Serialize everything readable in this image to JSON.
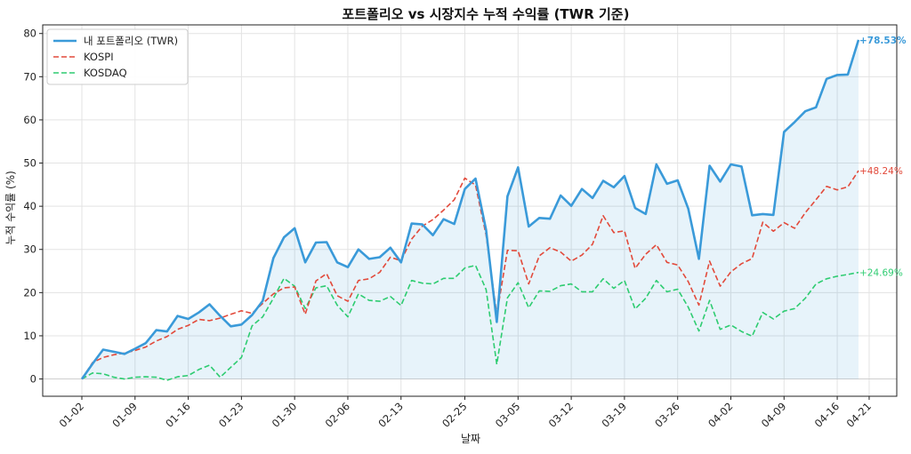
{
  "chart_data": {
    "type": "line",
    "title": "포트폴리오 vs 시장지수 누적 수익률 (TWR 기준)",
    "xlabel": "날짜",
    "ylabel": "누적 수익률 (%)",
    "ylim": [
      -4,
      82
    ],
    "y_ticks": [
      0,
      10,
      20,
      30,
      40,
      50,
      60,
      70,
      80
    ],
    "x_tick_labels": [
      "01-02",
      "01-09",
      "01-16",
      "01-23",
      "01-30",
      "02-06",
      "02-13",
      "02-25",
      "03-05",
      "03-12",
      "03-19",
      "03-26",
      "04-02",
      "04-09",
      "04-16",
      "04-21"
    ],
    "x_tick_indices": [
      0,
      5,
      10,
      15,
      20,
      25,
      30,
      36,
      41,
      46,
      51,
      56,
      61,
      66,
      71,
      74
    ],
    "grid": true,
    "legend_position": "top-left",
    "series": [
      {
        "name": "내 포트폴리오 (TWR)",
        "color": "#3a9ad9",
        "style": "solid",
        "end_label": "+78.53%",
        "values": [
          0,
          3.5,
          6.8,
          6.3,
          5.8,
          7,
          8.3,
          11.3,
          11,
          14.6,
          13.9,
          15.4,
          17.3,
          14.6,
          12.2,
          12.6,
          14.8,
          18.1,
          28,
          32.8,
          34.9,
          27,
          31.6,
          31.7,
          27,
          25.9,
          30,
          27.8,
          28.2,
          30.4,
          27,
          36,
          35.8,
          33.3,
          37,
          35.9,
          44,
          46.4,
          34.5,
          13.2,
          42.3,
          49,
          35.3,
          37.3,
          37.1,
          42.5,
          40.1,
          44,
          41.9,
          45.9,
          44.4,
          47,
          39.6,
          38.2,
          49.7,
          45.2,
          46,
          39.4,
          27.8,
          49.4,
          45.7,
          49.7,
          49.2,
          37.9,
          38.2,
          38,
          57.2,
          59.5,
          62,
          62.9,
          69.5,
          70.4,
          70.5,
          78.53
        ]
      },
      {
        "name": "KOSPI",
        "color": "#e24a3b",
        "style": "dashed",
        "end_label": "+48.24%",
        "values": [
          0,
          3.8,
          5,
          5.6,
          6,
          6.6,
          7.4,
          8.8,
          9.8,
          11.5,
          12.4,
          13.8,
          13.5,
          14.1,
          15,
          15.8,
          15.2,
          17.5,
          19.7,
          21.1,
          21.3,
          15,
          22.7,
          24.4,
          19.3,
          18,
          22.8,
          23.2,
          24.7,
          28.2,
          27.4,
          32.4,
          35.4,
          36.9,
          39.1,
          41.5,
          46.5,
          44.9,
          33.3,
          14.9,
          29.8,
          29.7,
          22,
          28.5,
          30.4,
          29.4,
          27.3,
          28.7,
          31.2,
          37.8,
          33.9,
          34.3,
          25.6,
          28.9,
          31.1,
          27,
          26.4,
          22.5,
          17.1,
          27.3,
          21.5,
          24.8,
          26.7,
          27.9,
          36.3,
          34.2,
          36.2,
          34.9,
          38.5,
          41.5,
          44.6,
          43.8,
          44.5,
          48.24
        ]
      },
      {
        "name": "KOSDAQ",
        "color": "#2ecc71",
        "style": "dashed",
        "end_label": "+24.69%",
        "values": [
          0,
          1.4,
          1.2,
          0.4,
          0,
          0.4,
          0.5,
          0.4,
          -0.3,
          0.5,
          0.8,
          2.2,
          3.2,
          0.4,
          2.7,
          5,
          12.3,
          14.4,
          18.7,
          23.3,
          21.5,
          16.3,
          21.1,
          21.6,
          17.1,
          14.4,
          19.7,
          18.2,
          18,
          19.1,
          17,
          22.8,
          22.2,
          22,
          23.3,
          23.3,
          25.7,
          26.3,
          20.7,
          3.4,
          18.8,
          22.3,
          16.5,
          20.4,
          20.3,
          21.6,
          22,
          20.2,
          20.2,
          23.2,
          21,
          22.8,
          16.2,
          18.7,
          22.8,
          20.2,
          20.8,
          16.6,
          11.1,
          18.2,
          11.5,
          12.5,
          11,
          9.9,
          15.4,
          13.9,
          15.7,
          16.3,
          18.7,
          22,
          23.2,
          23.8,
          24.2,
          24.69
        ]
      }
    ]
  }
}
